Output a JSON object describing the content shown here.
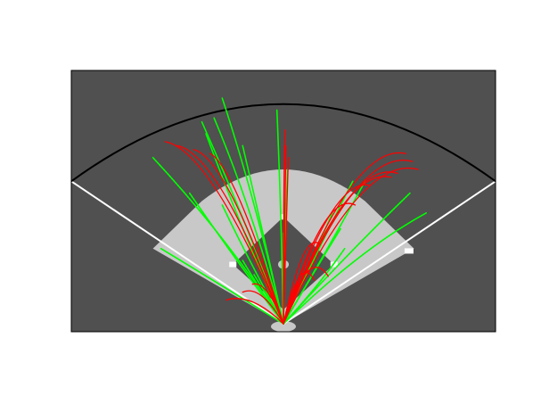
{
  "chart_data": {
    "type": "line",
    "title": "",
    "xlabel": "",
    "ylabel": "",
    "xlim": [
      -260,
      260
    ],
    "ylim": [
      -10,
      320
    ],
    "grid": false,
    "legend": "none",
    "colors": {
      "background": "#505050",
      "infield": "#c8c8c8",
      "infield_dirt": "#505050",
      "foul_lines": "#ffffff",
      "outfield_wall": "#000000",
      "hit": "#00ff00",
      "out": "#ff0000",
      "frame": "#000000"
    },
    "series": [
      {
        "name": "",
        "color": "#00ff00",
        "trajectories": [
          {
            "x": [
              0,
              -35,
              -75
            ],
            "y": [
              0,
              160,
              285
            ]
          },
          {
            "x": [
              0,
              -48,
              -100
            ],
            "y": [
              0,
              135,
              255
            ]
          },
          {
            "x": [
              0,
              -52,
              -95
            ],
            "y": [
              0,
              120,
              240
            ]
          },
          {
            "x": [
              0,
              -70,
              -160
            ],
            "y": [
              0,
              110,
              210
            ]
          },
          {
            "x": [
              0,
              -40,
              -85
            ],
            "y": [
              0,
              150,
              260
            ]
          },
          {
            "x": [
              0,
              -65,
              -115
            ],
            "y": [
              0,
              90,
              165
            ]
          },
          {
            "x": [
              0,
              -45,
              -75
            ],
            "y": [
              0,
              85,
              150
            ]
          },
          {
            "x": [
              0,
              -70,
              -150
            ],
            "y": [
              0,
              45,
              95
            ]
          },
          {
            "x": [
              0,
              -30,
              -50
            ],
            "y": [
              0,
              45,
              80
            ]
          },
          {
            "x": [
              0,
              -20,
              -36
            ],
            "y": [
              0,
              35,
              62
            ]
          },
          {
            "x": [
              0,
              -25,
              -50
            ],
            "y": [
              0,
              115,
              225
            ]
          },
          {
            "x": [
              0,
              -3,
              -8
            ],
            "y": [
              0,
              150,
              270
            ]
          },
          {
            "x": [
              0,
              0,
              0
            ],
            "y": [
              0,
              60,
              115
            ]
          },
          {
            "x": [
              0,
              2,
              5
            ],
            "y": [
              0,
              110,
              195
            ]
          },
          {
            "x": [
              0,
              45,
              85
            ],
            "y": [
              0,
              100,
              180
            ]
          },
          {
            "x": [
              0,
              55,
              100
            ],
            "y": [
              0,
              95,
              180
            ]
          },
          {
            "x": [
              0,
              75,
              155
            ],
            "y": [
              0,
              85,
              165
            ]
          },
          {
            "x": [
              0,
              95,
              175
            ],
            "y": [
              0,
              95,
              140
            ]
          },
          {
            "x": [
              0,
              40,
              70
            ],
            "y": [
              0,
              70,
              120
            ]
          },
          {
            "x": [
              0,
              30,
              60
            ],
            "y": [
              0,
              70,
              140
            ]
          },
          {
            "x": [
              0,
              45,
              75
            ],
            "y": [
              0,
              50,
              95
            ]
          }
        ]
      },
      {
        "name": "",
        "color": "#ff0000",
        "trajectories": [
          {
            "x": [
              0,
              -90,
              -145
            ],
            "y": [
              0,
              220,
              230
            ]
          },
          {
            "x": [
              0,
              -80,
              -130
            ],
            "y": [
              0,
              215,
              225
            ]
          },
          {
            "x": [
              0,
              -70,
              -110
            ],
            "y": [
              0,
              210,
              220
            ]
          },
          {
            "x": [
              0,
              -60,
              -90
            ],
            "y": [
              0,
              200,
              215
            ]
          },
          {
            "x": [
              0,
              0,
              2
            ],
            "y": [
              0,
              180,
              245
            ]
          },
          {
            "x": [
              0,
              2,
              3
            ],
            "y": [
              0,
              165,
              225
            ]
          },
          {
            "x": [
              0,
              4,
              6
            ],
            "y": [
              0,
              155,
              210
            ]
          },
          {
            "x": [
              0,
              85,
              150
            ],
            "y": [
              0,
              230,
              215
            ]
          },
          {
            "x": [
              0,
              90,
              158
            ],
            "y": [
              0,
              225,
              205
            ]
          },
          {
            "x": [
              0,
              95,
              165
            ],
            "y": [
              0,
              215,
              195
            ]
          },
          {
            "x": [
              0,
              80,
              140
            ],
            "y": [
              0,
              210,
              190
            ]
          },
          {
            "x": [
              0,
              75,
              132
            ],
            "y": [
              0,
              200,
              185
            ]
          },
          {
            "x": [
              0,
              60,
              105
            ],
            "y": [
              0,
              185,
              175
            ]
          },
          {
            "x": [
              0,
              50,
              88
            ],
            "y": [
              0,
              170,
              150
            ]
          },
          {
            "x": [
              0,
              25,
              45
            ],
            "y": [
              0,
              120,
              100
            ]
          },
          {
            "x": [
              0,
              30,
              55
            ],
            "y": [
              0,
              100,
              60
            ]
          },
          {
            "x": [
              0,
              20,
              38
            ],
            "y": [
              0,
              90,
              55
            ]
          },
          {
            "x": [
              0,
              -20,
              -38
            ],
            "y": [
              0,
              55,
              50
            ]
          },
          {
            "x": [
              0,
              -28,
              -50
            ],
            "y": [
              0,
              50,
              40
            ]
          },
          {
            "x": [
              0,
              -40,
              -70
            ],
            "y": [
              0,
              40,
              30
            ]
          }
        ]
      }
    ]
  }
}
